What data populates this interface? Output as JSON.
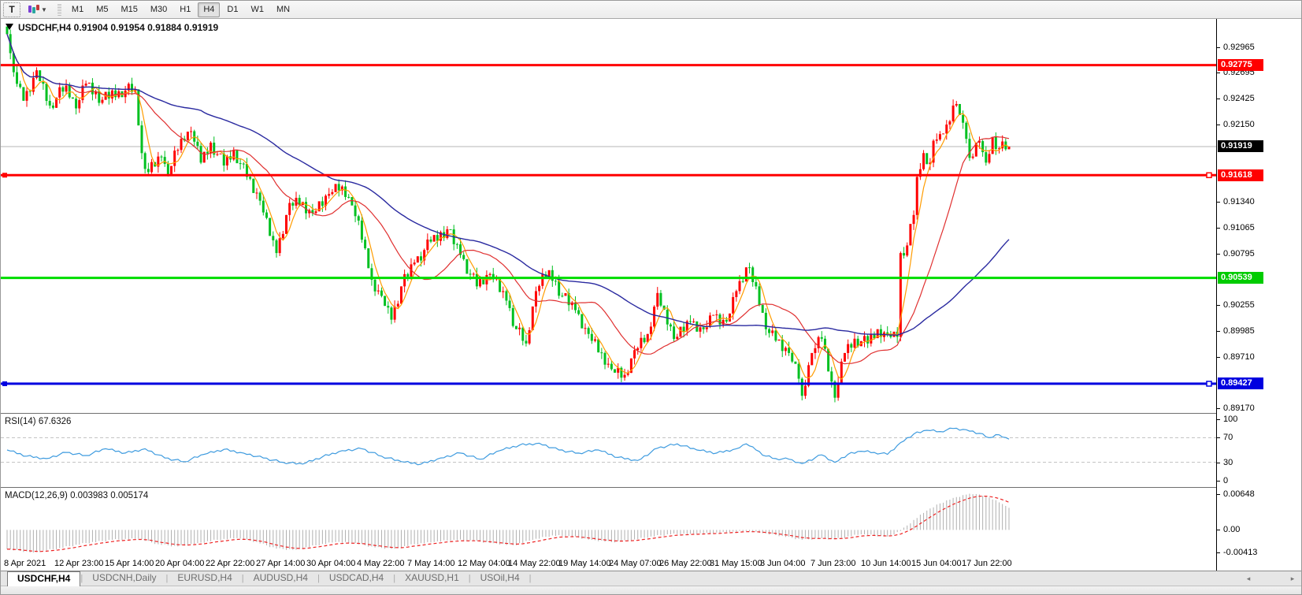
{
  "toolbar": {
    "text_tool_label": "T",
    "indicator_button": "candles-icon",
    "dropdown_glyph": "▼",
    "timeframes": [
      "M1",
      "M5",
      "M15",
      "M30",
      "H1",
      "H4",
      "D1",
      "W1",
      "MN"
    ],
    "active_timeframe": "H4"
  },
  "header": {
    "marker_glyph": "▼",
    "symbol": "USDCHF,H4",
    "open": "0.91904",
    "high": "0.91954",
    "low": "0.91884",
    "close": "0.91919"
  },
  "price_axis": {
    "ticks": [
      "0.92965",
      "0.92695",
      "0.92425",
      "0.92150",
      "0.91340",
      "0.91065",
      "0.90795",
      "0.90255",
      "0.89985",
      "0.89710",
      "0.89170"
    ],
    "badges": [
      {
        "text": "0.92775",
        "price": 0.92775,
        "bg": "#ff0000",
        "fg": "#ffffff"
      },
      {
        "text": "0.91919",
        "price": 0.91919,
        "bg": "#000000",
        "fg": "#ffffff"
      },
      {
        "text": "0.91618",
        "price": 0.91618,
        "bg": "#ff0000",
        "fg": "#ffffff"
      },
      {
        "text": "0.90539",
        "price": 0.90539,
        "bg": "#00cc00",
        "fg": "#ffffff"
      },
      {
        "text": "0.89427",
        "price": 0.89427,
        "bg": "#0000e0",
        "fg": "#ffffff"
      }
    ]
  },
  "rsi_panel": {
    "label": "RSI(14) 67.6326",
    "axis_ticks": [
      "100",
      "70",
      "30",
      "0"
    ],
    "axis_values": [
      100,
      70,
      30,
      0
    ]
  },
  "macd_panel": {
    "label": "MACD(12,26,9) 0.003983 0.005174",
    "axis_ticks": [
      "0.00648",
      "0.00",
      "-0.00413"
    ],
    "axis_values": [
      0.00648,
      0.0,
      -0.00413
    ]
  },
  "tabs": [
    {
      "label": "USDCHF,H4",
      "active": true
    },
    {
      "label": "USDCNH,Daily",
      "active": false
    },
    {
      "label": "EURUSD,H4",
      "active": false
    },
    {
      "label": "AUDUSD,H4",
      "active": false
    },
    {
      "label": "USDCAD,H4",
      "active": false
    },
    {
      "label": "XAUUSD,H1",
      "active": false
    },
    {
      "label": "USOil,H4",
      "active": false
    }
  ],
  "tab_scroll": {
    "left": "◂",
    "right": "▸"
  },
  "chart_data": {
    "type": "candlestick",
    "instrument": "USDCHF",
    "timeframe": "H4",
    "bars_total": 306,
    "price_range": {
      "max": 0.9326,
      "min": 0.8912
    },
    "up_color": "#ff0000",
    "down_color": "#00c020",
    "current_price": 0.91919,
    "current_price_line_color": "#b4b4b4",
    "ohlc_current": {
      "open": 0.91904,
      "high": 0.91954,
      "low": 0.91884,
      "close": 0.91919
    },
    "hlines": [
      {
        "name": "resistance-upper",
        "price": 0.92775,
        "color": "#ff0000",
        "width": 3,
        "handles": false
      },
      {
        "name": "resistance-mid",
        "price": 0.91618,
        "color": "#ff0000",
        "width": 3,
        "handles": true
      },
      {
        "name": "support-green",
        "price": 0.90539,
        "color": "#00dd00",
        "width": 3,
        "handles": false
      },
      {
        "name": "support-blue",
        "price": 0.89427,
        "color": "#0000e0",
        "width": 3,
        "handles": true
      }
    ],
    "moving_averages": [
      {
        "name": "fast",
        "period": 5,
        "color": "#ff9c00"
      },
      {
        "name": "mid",
        "period": 20,
        "color": "#e03030"
      },
      {
        "name": "slow",
        "period": 60,
        "color": "#2a2aa0"
      }
    ],
    "close_path": [
      [
        0,
        0.931
      ],
      [
        2,
        0.927
      ],
      [
        5,
        0.924
      ],
      [
        9,
        0.9272
      ],
      [
        13,
        0.9235
      ],
      [
        18,
        0.9256
      ],
      [
        21,
        0.9232
      ],
      [
        24,
        0.9258
      ],
      [
        29,
        0.9241
      ],
      [
        34,
        0.925
      ],
      [
        39,
        0.9252
      ],
      [
        41,
        0.9185
      ],
      [
        43,
        0.9165
      ],
      [
        47,
        0.9181
      ],
      [
        49,
        0.9162
      ],
      [
        53,
        0.92
      ],
      [
        56,
        0.9208
      ],
      [
        59,
        0.9175
      ],
      [
        62,
        0.9196
      ],
      [
        66,
        0.9172
      ],
      [
        69,
        0.9188
      ],
      [
        73,
        0.916
      ],
      [
        77,
        0.9135
      ],
      [
        80,
        0.9098
      ],
      [
        82,
        0.908
      ],
      [
        85,
        0.912
      ],
      [
        88,
        0.9138
      ],
      [
        93,
        0.9122
      ],
      [
        98,
        0.9142
      ],
      [
        102,
        0.915
      ],
      [
        105,
        0.913
      ],
      [
        109,
        0.9085
      ],
      [
        111,
        0.9052
      ],
      [
        114,
        0.9035
      ],
      [
        117,
        0.901
      ],
      [
        120,
        0.9045
      ],
      [
        124,
        0.907
      ],
      [
        129,
        0.9092
      ],
      [
        134,
        0.9105
      ],
      [
        138,
        0.9078
      ],
      [
        143,
        0.9045
      ],
      [
        147,
        0.9058
      ],
      [
        152,
        0.903
      ],
      [
        155,
        0.9
      ],
      [
        158,
        0.8985
      ],
      [
        161,
        0.904
      ],
      [
        165,
        0.9062
      ],
      [
        169,
        0.9035
      ],
      [
        173,
        0.902
      ],
      [
        177,
        0.8995
      ],
      [
        181,
        0.8975
      ],
      [
        184,
        0.8958
      ],
      [
        188,
        0.8952
      ],
      [
        191,
        0.8978
      ],
      [
        195,
        0.8995
      ],
      [
        198,
        0.9038
      ],
      [
        201,
        0.9005
      ],
      [
        204,
        0.8992
      ],
      [
        208,
        0.9008
      ],
      [
        212,
        0.9
      ],
      [
        215,
        0.9015
      ],
      [
        219,
        0.9008
      ],
      [
        222,
        0.904
      ],
      [
        225,
        0.9065
      ],
      [
        228,
        0.9045
      ],
      [
        231,
        0.9
      ],
      [
        234,
        0.8988
      ],
      [
        238,
        0.8975
      ],
      [
        241,
        0.8948
      ],
      [
        242,
        0.893
      ],
      [
        245,
        0.8975
      ],
      [
        248,
        0.899
      ],
      [
        251,
        0.8945
      ],
      [
        252,
        0.8928
      ],
      [
        255,
        0.8975
      ],
      [
        258,
        0.899
      ],
      [
        262,
        0.8985
      ],
      [
        265,
        0.9
      ],
      [
        268,
        0.8995
      ],
      [
        271,
        0.8992
      ],
      [
        272,
        0.908
      ],
      [
        274,
        0.9088
      ],
      [
        276,
        0.912
      ],
      [
        277,
        0.916
      ],
      [
        279,
        0.9185
      ],
      [
        281,
        0.9175
      ],
      [
        282,
        0.9198
      ],
      [
        284,
        0.9205
      ],
      [
        286,
        0.9215
      ],
      [
        288,
        0.9235
      ],
      [
        290,
        0.9225
      ],
      [
        292,
        0.92
      ],
      [
        293,
        0.918
      ],
      [
        295,
        0.9196
      ],
      [
        297,
        0.9186
      ],
      [
        298,
        0.9175
      ],
      [
        300,
        0.9202
      ],
      [
        302,
        0.919
      ],
      [
        305,
        0.91919
      ]
    ],
    "rsi": {
      "period": 14,
      "current": 67.6326,
      "color": "#3e9bdf",
      "levels": [
        70,
        30
      ],
      "path": [
        [
          0,
          50
        ],
        [
          6,
          40
        ],
        [
          12,
          36
        ],
        [
          18,
          46
        ],
        [
          24,
          41
        ],
        [
          30,
          52
        ],
        [
          36,
          45
        ],
        [
          42,
          52
        ],
        [
          48,
          37
        ],
        [
          54,
          31
        ],
        [
          60,
          43
        ],
        [
          66,
          51
        ],
        [
          72,
          45
        ],
        [
          78,
          37
        ],
        [
          84,
          30
        ],
        [
          90,
          27
        ],
        [
          96,
          39
        ],
        [
          102,
          49
        ],
        [
          108,
          52
        ],
        [
          114,
          40
        ],
        [
          120,
          31
        ],
        [
          126,
          27
        ],
        [
          132,
          37
        ],
        [
          138,
          45
        ],
        [
          144,
          35
        ],
        [
          150,
          49
        ],
        [
          156,
          58
        ],
        [
          162,
          61
        ],
        [
          168,
          50
        ],
        [
          174,
          45
        ],
        [
          180,
          50
        ],
        [
          186,
          38
        ],
        [
          192,
          33
        ],
        [
          198,
          53
        ],
        [
          204,
          60
        ],
        [
          210,
          50
        ],
        [
          216,
          45
        ],
        [
          222,
          52
        ],
        [
          225,
          60
        ],
        [
          228,
          50
        ],
        [
          231,
          40
        ],
        [
          234,
          36
        ],
        [
          238,
          35
        ],
        [
          242,
          28
        ],
        [
          248,
          42
        ],
        [
          252,
          30
        ],
        [
          256,
          43
        ],
        [
          260,
          48
        ],
        [
          264,
          46
        ],
        [
          268,
          43
        ],
        [
          272,
          62
        ],
        [
          276,
          76
        ],
        [
          280,
          82
        ],
        [
          284,
          80
        ],
        [
          288,
          85
        ],
        [
          292,
          83
        ],
        [
          296,
          77
        ],
        [
          299,
          70
        ],
        [
          301,
          75
        ],
        [
          303,
          71
        ],
        [
          305,
          67.63
        ]
      ]
    },
    "macd": {
      "fast": 12,
      "slow": 26,
      "signal_period": 9,
      "current_main": 0.003983,
      "current_signal": 0.005174,
      "histogram_color": "#b0b0b0",
      "signal_color": "#ee2222",
      "range": {
        "max": 0.0072,
        "min": -0.0048
      },
      "path": [
        [
          0,
          -0.0035
        ],
        [
          8,
          -0.0041
        ],
        [
          16,
          -0.0033
        ],
        [
          24,
          -0.0024
        ],
        [
          32,
          -0.0018
        ],
        [
          40,
          -0.0016
        ],
        [
          46,
          -0.0026
        ],
        [
          52,
          -0.003
        ],
        [
          58,
          -0.0024
        ],
        [
          64,
          -0.0018
        ],
        [
          70,
          -0.0015
        ],
        [
          76,
          -0.0022
        ],
        [
          82,
          -0.0034
        ],
        [
          88,
          -0.0036
        ],
        [
          94,
          -0.0028
        ],
        [
          100,
          -0.0022
        ],
        [
          106,
          -0.0024
        ],
        [
          112,
          -0.0032
        ],
        [
          118,
          -0.0034
        ],
        [
          124,
          -0.0026
        ],
        [
          130,
          -0.0022
        ],
        [
          136,
          -0.0018
        ],
        [
          142,
          -0.002
        ],
        [
          148,
          -0.0024
        ],
        [
          154,
          -0.0028
        ],
        [
          160,
          -0.0018
        ],
        [
          166,
          -0.001
        ],
        [
          172,
          -0.0012
        ],
        [
          178,
          -0.0018
        ],
        [
          184,
          -0.0022
        ],
        [
          190,
          -0.0019
        ],
        [
          196,
          -0.0012
        ],
        [
          202,
          -0.0008
        ],
        [
          208,
          -0.0007
        ],
        [
          214,
          -0.0006
        ],
        [
          220,
          -0.0004
        ],
        [
          225,
          -0.0002
        ],
        [
          230,
          -0.0006
        ],
        [
          236,
          -0.0011
        ],
        [
          242,
          -0.0018
        ],
        [
          248,
          -0.0015
        ],
        [
          252,
          -0.0017
        ],
        [
          256,
          -0.0012
        ],
        [
          260,
          -0.0008
        ],
        [
          264,
          -0.001
        ],
        [
          268,
          -0.0012
        ],
        [
          272,
          -0.0002
        ],
        [
          276,
          0.0018
        ],
        [
          280,
          0.0035
        ],
        [
          284,
          0.0048
        ],
        [
          288,
          0.0058
        ],
        [
          292,
          0.0064
        ],
        [
          295,
          0.0065
        ],
        [
          298,
          0.0061
        ],
        [
          301,
          0.0054
        ],
        [
          303,
          0.0047
        ],
        [
          305,
          0.004
        ]
      ]
    },
    "xaxis_labels": [
      "8 Apr 2021",
      "12 Apr 23:00",
      "15 Apr 14:00",
      "20 Apr 04:00",
      "22 Apr 22:00",
      "27 Apr 14:00",
      "30 Apr 04:00",
      "4 May 22:00",
      "7 May 14:00",
      "12 May 04:00",
      "14 May 22:00",
      "19 May 14:00",
      "24 May 07:00",
      "26 May 22:00",
      "31 May 15:00",
      "3 Jun 04:00",
      "7 Jun 23:00",
      "10 Jun 14:00",
      "15 Jun 04:00",
      "17 Jun 22:00"
    ]
  }
}
